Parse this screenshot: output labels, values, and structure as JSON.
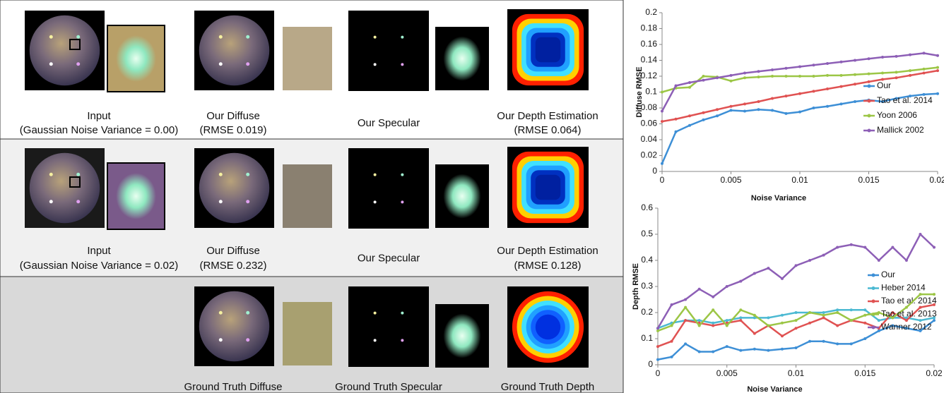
{
  "panels": [
    {
      "captions": [
        [
          "Input",
          "(Gaussian Noise Variance = 0.00)"
        ],
        [
          "Our Diffuse",
          "(RMSE 0.019)"
        ],
        [
          "Our Specular"
        ],
        [
          "Our Depth Estimation",
          "(RMSE 0.064)"
        ]
      ]
    },
    {
      "captions": [
        [
          "Input",
          "(Gaussian Noise Variance = 0.02)"
        ],
        [
          "Our Diffuse",
          "(RMSE 0.232)"
        ],
        [
          "Our Specular"
        ],
        [
          "Our Depth Estimation",
          "(RMSE 0.128)"
        ]
      ]
    },
    {
      "captions": [
        [
          "Ground Truth Diffuse"
        ],
        [
          "Ground Truth Specular"
        ],
        [
          "Ground Truth Depth"
        ]
      ]
    }
  ],
  "chart_data": [
    {
      "type": "line",
      "x_label": "Noise Variance",
      "y_label": "Diffuse RMSE",
      "x": [
        0,
        0.001,
        0.002,
        0.003,
        0.004,
        0.005,
        0.006,
        0.007,
        0.008,
        0.009,
        0.01,
        0.011,
        0.012,
        0.013,
        0.014,
        0.015,
        0.016,
        0.017,
        0.018,
        0.019,
        0.02
      ],
      "xlim": [
        0,
        0.02
      ],
      "xticks": [
        0,
        0.005,
        0.01,
        0.015,
        0.02
      ],
      "ylim": [
        0,
        0.2
      ],
      "yticks": [
        0,
        0.02,
        0.04,
        0.06,
        0.08,
        0.1,
        0.12,
        0.14,
        0.16,
        0.18,
        0.2
      ],
      "series": [
        {
          "name": "Our",
          "color": "#3d8fd6",
          "values": [
            0.01,
            0.05,
            0.058,
            0.065,
            0.07,
            0.077,
            0.076,
            0.078,
            0.077,
            0.073,
            0.075,
            0.08,
            0.082,
            0.085,
            0.088,
            0.09,
            0.088,
            0.092,
            0.095,
            0.097,
            0.098
          ]
        },
        {
          "name": "Tao et al. 2014",
          "color": "#e05252",
          "values": [
            0.063,
            0.066,
            0.07,
            0.074,
            0.078,
            0.082,
            0.085,
            0.088,
            0.092,
            0.095,
            0.098,
            0.101,
            0.104,
            0.107,
            0.11,
            0.113,
            0.116,
            0.118,
            0.121,
            0.124,
            0.127
          ]
        },
        {
          "name": "Yoon 2006",
          "color": "#9cc646",
          "values": [
            0.1,
            0.105,
            0.106,
            0.12,
            0.119,
            0.114,
            0.118,
            0.119,
            0.12,
            0.12,
            0.12,
            0.12,
            0.121,
            0.121,
            0.122,
            0.123,
            0.124,
            0.125,
            0.127,
            0.129,
            0.131
          ]
        },
        {
          "name": "Mallick 2002",
          "color": "#8d5fb6",
          "values": [
            0.076,
            0.108,
            0.112,
            0.115,
            0.118,
            0.121,
            0.124,
            0.126,
            0.128,
            0.13,
            0.132,
            0.134,
            0.136,
            0.138,
            0.14,
            0.142,
            0.144,
            0.145,
            0.147,
            0.149,
            0.146
          ]
        }
      ]
    },
    {
      "type": "line",
      "x_label": "Noise Variance",
      "y_label": "Depth RMSE",
      "x": [
        0,
        0.001,
        0.002,
        0.003,
        0.004,
        0.005,
        0.006,
        0.007,
        0.008,
        0.009,
        0.01,
        0.011,
        0.012,
        0.013,
        0.014,
        0.015,
        0.016,
        0.017,
        0.018,
        0.019,
        0.02
      ],
      "xlim": [
        0,
        0.02
      ],
      "xticks": [
        0,
        0.005,
        0.01,
        0.015,
        0.02
      ],
      "ylim": [
        0,
        0.6
      ],
      "yticks": [
        0,
        0.1,
        0.2,
        0.3,
        0.4,
        0.5,
        0.6
      ],
      "series": [
        {
          "name": "Our",
          "color": "#3d8fd6",
          "values": [
            0.02,
            0.03,
            0.08,
            0.05,
            0.05,
            0.07,
            0.055,
            0.06,
            0.055,
            0.06,
            0.065,
            0.09,
            0.09,
            0.08,
            0.08,
            0.1,
            0.13,
            0.15,
            0.14,
            0.13,
            0.17
          ]
        },
        {
          "name": "Heber 2014",
          "color": "#4bb9d2",
          "values": [
            0.14,
            0.16,
            0.17,
            0.17,
            0.16,
            0.17,
            0.18,
            0.18,
            0.18,
            0.19,
            0.2,
            0.2,
            0.2,
            0.21,
            0.21,
            0.21,
            0.17,
            0.18,
            0.18,
            0.17,
            0.18
          ]
        },
        {
          "name": "Tao et al. 2014",
          "color": "#e05252",
          "values": [
            0.07,
            0.09,
            0.17,
            0.16,
            0.15,
            0.16,
            0.17,
            0.12,
            0.15,
            0.11,
            0.14,
            0.16,
            0.18,
            0.15,
            0.17,
            0.16,
            0.14,
            0.2,
            0.17,
            0.22,
            0.23
          ]
        },
        {
          "name": "Tao et al. 2013",
          "color": "#9cc646",
          "values": [
            0.13,
            0.15,
            0.22,
            0.15,
            0.21,
            0.15,
            0.21,
            0.19,
            0.15,
            0.16,
            0.17,
            0.2,
            0.19,
            0.2,
            0.17,
            0.19,
            0.2,
            0.18,
            0.22,
            0.27,
            0.27
          ]
        },
        {
          "name": "Wanner 2012",
          "color": "#8d5fb6",
          "values": [
            0.14,
            0.23,
            0.25,
            0.29,
            0.26,
            0.3,
            0.32,
            0.35,
            0.37,
            0.33,
            0.38,
            0.4,
            0.42,
            0.45,
            0.46,
            0.45,
            0.4,
            0.45,
            0.4,
            0.5,
            0.45
          ]
        }
      ]
    }
  ]
}
